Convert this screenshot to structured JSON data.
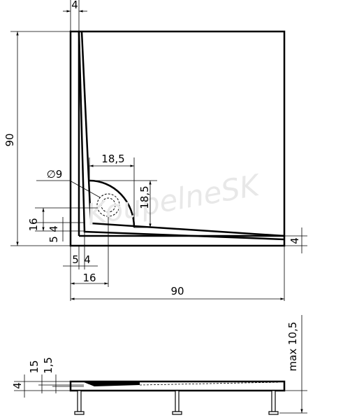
{
  "top_view": {
    "dimensions": {
      "rim_top": "4",
      "height": "90",
      "drain_width": "18,5",
      "drain_diameter": "∅9",
      "drain_height": "18,5",
      "left_offset": "16",
      "left_small_a": "5",
      "left_small_b": "4",
      "bottom_small_a": "5",
      "bottom_small_b": "4",
      "bottom_offset": "16",
      "width": "90",
      "rim_right": "4"
    },
    "watermark": "KoupelneSK"
  },
  "side_view": {
    "dimensions": {
      "max_height": "max 10,5",
      "slope_a": "15",
      "slope_b": "1,5",
      "thickness": "4"
    }
  }
}
